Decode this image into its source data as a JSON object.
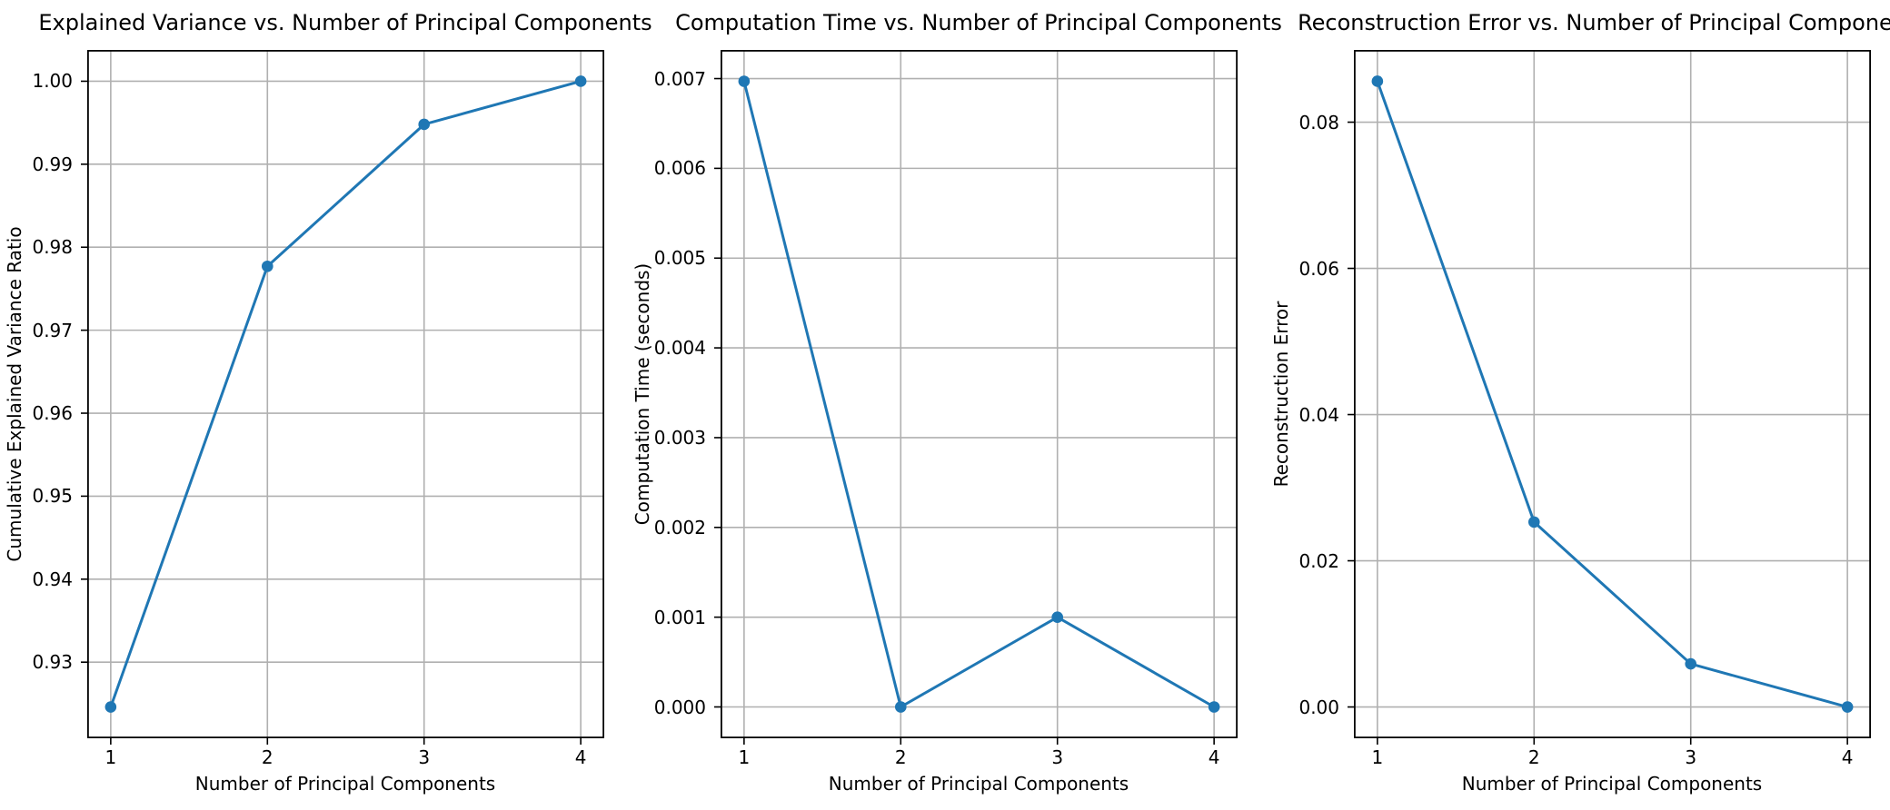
{
  "figure": {
    "background": "#ffffff",
    "text_color": "#000000",
    "spine_color": "#000000",
    "grid_color": "#b0b0b0"
  },
  "chart_data": [
    {
      "type": "line",
      "title": "Explained Variance vs. Number of Principal Components",
      "xlabel": "Number of Principal Components",
      "ylabel": "Cumulative Explained Variance Ratio",
      "x": [
        1,
        2,
        3,
        4
      ],
      "y": [
        0.9246,
        0.9777,
        0.9948,
        1.0
      ],
      "xlim": [
        0.85,
        4.15
      ],
      "ylim": [
        0.92083,
        1.00377
      ],
      "xticks": [
        1,
        2,
        3,
        4
      ],
      "xtick_labels": [
        "1",
        "2",
        "3",
        "4"
      ],
      "yticks": [
        0.93,
        0.94,
        0.95,
        0.96,
        0.97,
        0.98,
        0.99,
        1.0
      ],
      "ytick_labels": [
        "0.93",
        "0.94",
        "0.95",
        "0.96",
        "0.97",
        "0.98",
        "0.99",
        "1.00"
      ],
      "grid": true,
      "legend": null,
      "line_color": "#1f77b4",
      "marker": "o"
    },
    {
      "type": "line",
      "title": "Computation Time vs. Number of Principal Components",
      "xlabel": "Number of Principal Components",
      "ylabel": "Computation Time (seconds)",
      "x": [
        1,
        2,
        3,
        4
      ],
      "y": [
        0.00697,
        0.0,
        0.001,
        0.0
      ],
      "xlim": [
        0.85,
        4.15
      ],
      "ylim": [
        -0.000349,
        0.007319
      ],
      "xticks": [
        1,
        2,
        3,
        4
      ],
      "xtick_labels": [
        "1",
        "2",
        "3",
        "4"
      ],
      "yticks": [
        0.0,
        0.001,
        0.002,
        0.003,
        0.004,
        0.005,
        0.006,
        0.007
      ],
      "ytick_labels": [
        "0.000",
        "0.001",
        "0.002",
        "0.003",
        "0.004",
        "0.005",
        "0.006",
        "0.007"
      ],
      "grid": true,
      "legend": null,
      "line_color": "#1f77b4",
      "marker": "o"
    },
    {
      "type": "line",
      "title": "Reconstruction Error vs. Number of Principal Components",
      "xlabel": "Number of Principal Components",
      "ylabel": "Reconstruction Error",
      "x": [
        1,
        2,
        3,
        4
      ],
      "y": [
        0.0856,
        0.0253,
        0.0059,
        0.0
      ],
      "xlim": [
        0.85,
        4.15
      ],
      "ylim": [
        -0.00428,
        0.08988
      ],
      "xticks": [
        1,
        2,
        3,
        4
      ],
      "xtick_labels": [
        "1",
        "2",
        "3",
        "4"
      ],
      "yticks": [
        0.0,
        0.02,
        0.04,
        0.06,
        0.08
      ],
      "ytick_labels": [
        "0.00",
        "0.02",
        "0.04",
        "0.06",
        "0.08"
      ],
      "grid": true,
      "legend": null,
      "line_color": "#1f77b4",
      "marker": "o"
    }
  ]
}
